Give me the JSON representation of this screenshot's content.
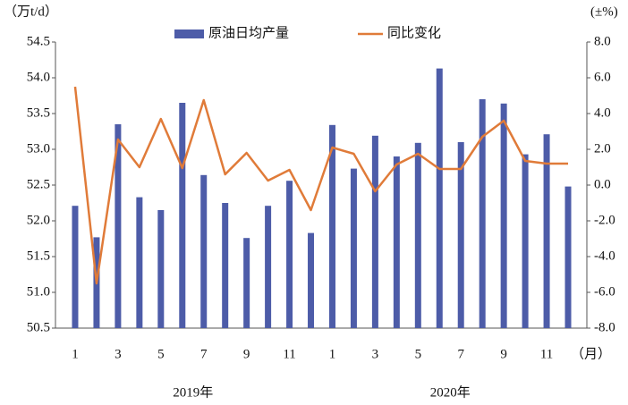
{
  "chart_data": {
    "type": "bar-line",
    "y_label": "（万t/d）",
    "y2_label": "(±%)",
    "x_label": "（月）",
    "annotations": [
      "2019年",
      "2020年"
    ],
    "categories": [
      "1",
      null,
      "3",
      null,
      "5",
      null,
      "7",
      null,
      "9",
      null,
      "11",
      null,
      "1",
      null,
      "3",
      null,
      "5",
      null,
      "7",
      null,
      "9",
      null,
      "11",
      null
    ],
    "series": [
      {
        "name": "原油日均产量",
        "type": "bar",
        "color": "#4d5ca8",
        "values": [
          52.21,
          51.77,
          53.35,
          52.33,
          52.15,
          53.65,
          52.64,
          52.25,
          51.76,
          52.21,
          52.56,
          51.83,
          53.34,
          52.73,
          53.19,
          52.9,
          53.09,
          54.13,
          53.1,
          53.7,
          53.64,
          52.93,
          53.21,
          52.48
        ]
      },
      {
        "name": "同比变化",
        "type": "line",
        "axis": "y2",
        "color": "#e07b39",
        "values": [
          5.5,
          -5.5,
          2.55,
          1.0,
          3.7,
          0.95,
          4.75,
          0.6,
          1.8,
          0.25,
          0.85,
          -1.4,
          2.1,
          1.75,
          -0.35,
          1.15,
          1.75,
          0.9,
          0.9,
          2.7,
          3.6,
          1.35,
          1.2,
          1.2
        ]
      }
    ],
    "ylim": [
      50.5,
      54.5
    ],
    "yticks": [
      50.5,
      {
        "value": 51,
        "label": "51.0"
      },
      51.5,
      {
        "value": 52,
        "label": "52.0"
      },
      52.5,
      {
        "value": 53,
        "label": "53.0"
      },
      53.5,
      {
        "value": 54,
        "label": "54.0"
      },
      54.5
    ],
    "y2lim": [
      -8,
      8
    ],
    "y2ticks": [
      {
        "value": -8,
        "label": "-8.0"
      },
      {
        "value": -6,
        "label": "-6.0"
      },
      {
        "value": -4,
        "label": "-4.0"
      },
      {
        "value": -2,
        "label": "-2.0"
      },
      {
        "value": 0,
        "label": "0.0"
      },
      {
        "value": 2,
        "label": "2.0"
      },
      {
        "value": 4,
        "label": "4.0"
      },
      {
        "value": 6,
        "label": "6.0"
      },
      {
        "value": 8,
        "label": "8.0"
      }
    ],
    "grid": false
  }
}
